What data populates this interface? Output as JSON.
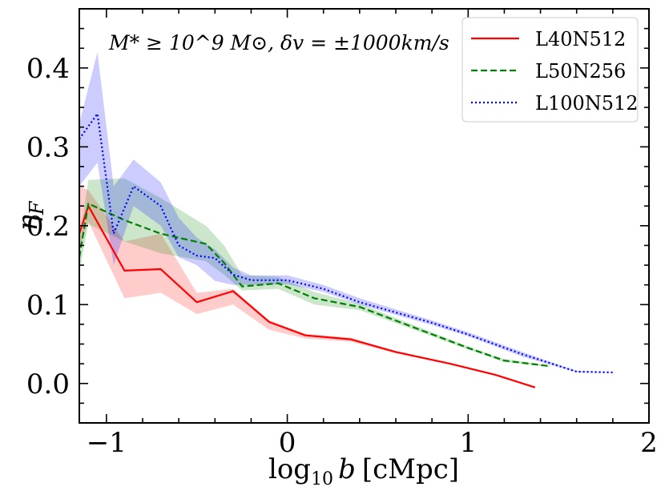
{
  "chart_data": {
    "type": "line",
    "title": "",
    "xlabel": "log10 b [cMpc]",
    "xlabel_main": "log",
    "xlabel_sub": "10",
    "xlabel_var": "b",
    "xlabel_unit": "[cMpc]",
    "ylabel": "ηF",
    "ylabel_main": "η",
    "ylabel_sub": "F",
    "xlim": [
      -1.15,
      2.0
    ],
    "ylim": [
      -0.05,
      0.475
    ],
    "xticks": [
      -1,
      0,
      1,
      2
    ],
    "xtick_labels": [
      "−1",
      "0",
      "1",
      "2"
    ],
    "yticks": [
      0.0,
      0.1,
      0.2,
      0.3,
      0.4
    ],
    "ytick_labels": [
      "0.0",
      "0.1",
      "0.2",
      "0.3",
      "0.4"
    ],
    "annotation": "M* ≥ 10^9 M⊙, δv = ±1000km/s",
    "legend_position": "top-right",
    "series": [
      {
        "name": "L40N512",
        "color": "#ff0000",
        "linestyle": "solid",
        "x": [
          -1.15,
          -1.1,
          -0.9,
          -0.7,
          -0.5,
          -0.3,
          -0.1,
          0.1,
          0.35,
          0.6,
          0.9,
          1.15,
          1.37
        ],
        "values": [
          0.19,
          0.225,
          0.143,
          0.145,
          0.103,
          0.117,
          0.078,
          0.061,
          0.056,
          0.04,
          0.025,
          0.011,
          -0.005
        ],
        "upper": [
          0.25,
          0.245,
          0.18,
          0.19,
          0.115,
          0.12,
          0.08,
          0.063,
          0.058,
          0.041,
          0.026,
          0.012,
          -0.004
        ],
        "lower": [
          0.17,
          0.205,
          0.108,
          0.115,
          0.088,
          0.1,
          0.068,
          0.057,
          0.053,
          0.038,
          0.024,
          0.01,
          -0.006
        ]
      },
      {
        "name": "L50N256",
        "color": "#008000",
        "linestyle": "dashed",
        "x": [
          -1.15,
          -1.1,
          -0.9,
          -0.7,
          -0.45,
          -0.35,
          -0.25,
          -0.05,
          0.15,
          0.4,
          0.7,
          1.0,
          1.2,
          1.45
        ],
        "values": [
          0.16,
          0.228,
          0.207,
          0.19,
          0.177,
          0.153,
          0.123,
          0.127,
          0.108,
          0.097,
          0.071,
          0.045,
          0.029,
          0.022
        ],
        "upper": [
          0.18,
          0.258,
          0.26,
          0.235,
          0.2,
          0.175,
          0.137,
          0.135,
          0.116,
          0.101,
          0.074,
          0.047,
          0.031,
          0.023
        ],
        "lower": [
          0.14,
          0.202,
          0.18,
          0.165,
          0.155,
          0.138,
          0.118,
          0.12,
          0.1,
          0.093,
          0.068,
          0.043,
          0.027,
          0.021
        ]
      },
      {
        "name": "L100N512",
        "color": "#0000ff",
        "linestyle": "dotted",
        "x": [
          -1.15,
          -1.05,
          -0.96,
          -0.85,
          -0.7,
          -0.6,
          -0.5,
          -0.4,
          -0.3,
          -0.2,
          0.0,
          0.2,
          0.4,
          0.8,
          1.0,
          1.3,
          1.6,
          1.8
        ],
        "values": [
          0.31,
          0.342,
          0.19,
          0.25,
          0.225,
          0.175,
          0.162,
          0.159,
          0.138,
          0.131,
          0.131,
          0.12,
          0.103,
          0.077,
          0.062,
          0.037,
          0.015,
          0.014
        ],
        "upper": [
          0.33,
          0.42,
          0.25,
          0.284,
          0.255,
          0.21,
          0.185,
          0.17,
          0.147,
          0.137,
          0.137,
          0.125,
          0.108,
          0.08,
          0.065,
          0.04,
          0.016,
          0.014
        ],
        "lower": [
          0.25,
          0.28,
          0.15,
          0.225,
          0.2,
          0.16,
          0.15,
          0.13,
          0.125,
          0.125,
          0.126,
          0.116,
          0.1,
          0.074,
          0.06,
          0.034,
          0.014,
          0.014
        ]
      }
    ]
  }
}
